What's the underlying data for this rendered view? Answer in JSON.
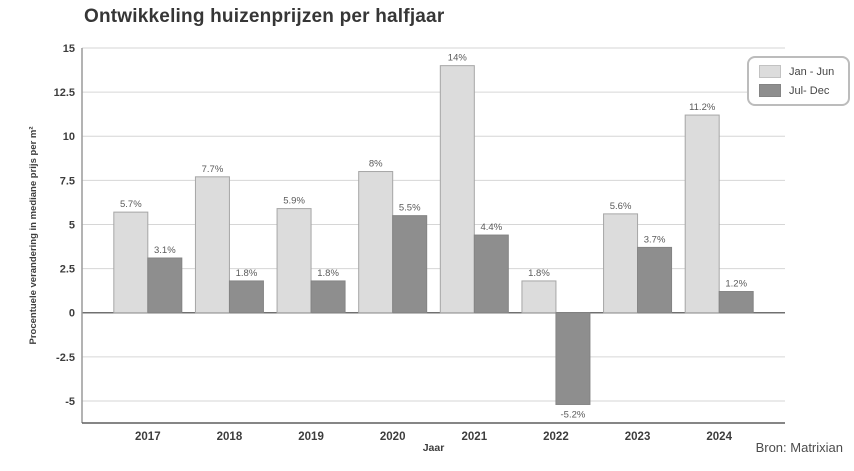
{
  "title": "Ontwikkeling huizenprijzen per halfjaar",
  "source": "Bron: Matrixian",
  "colors": {
    "series_jan_jun": "#dcdcdc",
    "series_jul_dec": "#8e8e8e",
    "gridline": "#d6d6d6",
    "zero_line": "#707070",
    "axis": "#5f5f5f",
    "text": "#3d3d3d"
  },
  "chart_data": {
    "type": "bar",
    "title": "Ontwikkeling huizenprijzen per halfjaar",
    "xlabel": "Jaar",
    "ylabel": "Procentuele verandering in mediane prijs per m²",
    "categories": [
      "2017",
      "2018",
      "2019",
      "2020",
      "2021",
      "2022",
      "2023",
      "2024"
    ],
    "series": [
      {
        "name": "Jan - Jun",
        "color": "#dcdcdc",
        "stroke": "#a6a6a6",
        "values": [
          5.7,
          7.7,
          5.9,
          8,
          14,
          1.8,
          5.6,
          11.2
        ],
        "labels": [
          "5.7%",
          "7.7%",
          "5.9%",
          "8%",
          "14%",
          "1.8%",
          "5.6%",
          "11.2%"
        ]
      },
      {
        "name": "Jul- Dec",
        "color": "#8e8e8e",
        "stroke": "#848484",
        "values": [
          3.1,
          1.8,
          1.8,
          5.5,
          4.4,
          -5.2,
          3.7,
          1.2
        ],
        "labels": [
          "3.1%",
          "1.8%",
          "1.8%",
          "5.5%",
          "4.4%",
          "-5.2%",
          "3.7%",
          "1.2%"
        ]
      }
    ],
    "yticks": [
      -5,
      -2.5,
      0,
      2.5,
      5,
      7.5,
      10,
      12.5,
      15
    ],
    "ylim": [
      -6.25,
      15
    ],
    "grid": true,
    "legend_position": "top-right"
  }
}
